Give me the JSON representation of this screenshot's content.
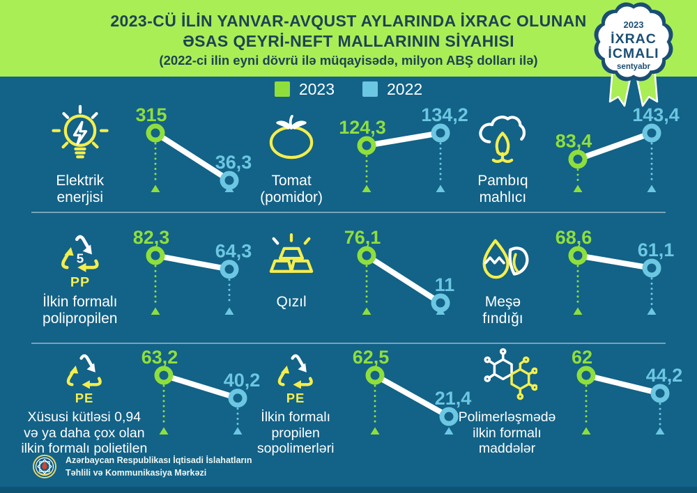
{
  "header": {
    "title_line1": "2023-CÜ İLİN YANVAR-AVQUST AYLARINDA İXRAC OLUNAN",
    "title_line2": "ƏSAS QEYRİ-NEFT MALLARININ SİYAHISI",
    "subtitle": "(2022-ci ilin eyni dövrü ilə müqayisədə, milyon ABŞ dolları ilə)"
  },
  "badge": {
    "year": "2023",
    "line1": "İXRAC",
    "line2": "İCMALI",
    "month": "sentyabr"
  },
  "legend": [
    {
      "label": "2023",
      "color": "#8fdf3c"
    },
    {
      "label": "2022",
      "color": "#6cc7e2"
    }
  ],
  "colors": {
    "background": "#136287",
    "header_green": "#a9ee55",
    "title_navy": "#1e4355",
    "badge_navy": "#1a4e74",
    "green_2023": "#8fdf3c",
    "cyan_2022": "#6cc7e2",
    "icon_yellow": "#f4ee4d",
    "white": "#ffffff"
  },
  "footer": {
    "org_line1": "Azərbaycan Respublikası İqtisadi İslahatların",
    "org_line2": "Təhlili və Kommunikasiya Mərkəzi"
  },
  "chart_data": {
    "type": "line",
    "subtype": "slope-comparison-per-item",
    "unit": "milyon ABŞ dolları",
    "series_names": [
      "2023",
      "2022"
    ],
    "legend_position": "top-center",
    "items": [
      {
        "icon": "lightbulb",
        "label": "Elektrik\nenerjisi",
        "values": {
          "y2023": 315,
          "y2022": 36.3
        },
        "display": {
          "y2023": "315",
          "y2022": "36,3"
        }
      },
      {
        "icon": "tomato",
        "label": "Tomat\n(pomidor)",
        "values": {
          "y2023": 124.3,
          "y2022": 134.2
        },
        "display": {
          "y2023": "124,3",
          "y2022": "134,2"
        }
      },
      {
        "icon": "cotton",
        "label": "Pambıq\nmahlıcı",
        "values": {
          "y2023": 83.4,
          "y2022": 143.4
        },
        "display": {
          "y2023": "83,4",
          "y2022": "143,4"
        }
      },
      {
        "icon": "recycle",
        "icon_text": {
          "center": "5",
          "sub": "PP"
        },
        "label": "İlkin formalı\npolipropilen",
        "values": {
          "y2023": 82.3,
          "y2022": 64.3
        },
        "display": {
          "y2023": "82,3",
          "y2022": "64,3"
        }
      },
      {
        "icon": "gold-bars",
        "label": "Qızıl",
        "values": {
          "y2023": 76.1,
          "y2022": 11
        },
        "display": {
          "y2023": "76,1",
          "y2022": "11"
        }
      },
      {
        "icon": "hazelnut",
        "label": "Meşə\nfındığı",
        "values": {
          "y2023": 68.6,
          "y2022": 61.1
        },
        "display": {
          "y2023": "68,6",
          "y2022": "61,1"
        }
      },
      {
        "icon": "recycle",
        "icon_text": {
          "sub": "PE"
        },
        "label": "Xüsusi kütləsi 0,94\nvə ya daha çox olan\nilkin formalı polietilen",
        "values": {
          "y2023": 63.2,
          "y2022": 40.2
        },
        "display": {
          "y2023": "63,2",
          "y2022": "40,2"
        }
      },
      {
        "icon": "recycle",
        "icon_text": {
          "sub": "PE"
        },
        "label": "İlkin formalı\npropilen\nsopolimerləri",
        "values": {
          "y2023": 62.5,
          "y2022": 21.4
        },
        "display": {
          "y2023": "62,5",
          "y2022": "21,4"
        }
      },
      {
        "icon": "molecule",
        "label": "Polimerləşmədə\nilkin formalı\nmaddələr",
        "values": {
          "y2023": 62,
          "y2022": 44.2
        },
        "display": {
          "y2023": "62",
          "y2022": "44,2"
        }
      }
    ]
  }
}
